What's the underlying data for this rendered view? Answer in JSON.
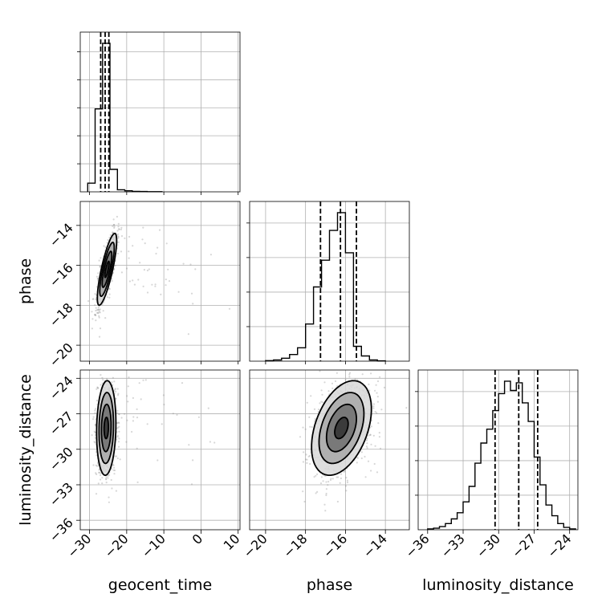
{
  "chart_data": {
    "type": "corner",
    "parameters": [
      "geocent_time",
      "phase",
      "luminosity_distance"
    ],
    "grid": true,
    "colors": {
      "line": "#000000",
      "points": "#8c8c8c",
      "grid": "#b0b0b0"
    },
    "ticks": {
      "geocent_time": {
        "values": [
          -30,
          -20,
          -10,
          0,
          10
        ],
        "labels": [
          "−30",
          "−20",
          "−10",
          "0",
          "10"
        ]
      },
      "phase": {
        "values": [
          -20,
          -18,
          -16,
          -14
        ],
        "labels": [
          "−20",
          "−18",
          "−16",
          "−14"
        ]
      },
      "luminosity_distance": {
        "values": [
          -36,
          -33,
          -30,
          -27,
          -24
        ],
        "labels": [
          "−36",
          "−33",
          "−30",
          "−27",
          "−24"
        ]
      }
    },
    "ranges": {
      "geocent_time": [
        -32.5,
        10.5
      ],
      "phase": [
        -20.8,
        -12.8
      ],
      "luminosity_distance": [
        -36.8,
        -23.3
      ]
    },
    "histograms": [
      {
        "parameter": "geocent_time",
        "bin_edges": [
          -30.5,
          -28.5,
          -26.5,
          -24.5,
          -22.5,
          -20.5,
          -18.5,
          -16.5,
          -14.5,
          -12.5,
          -10.5
        ],
        "counts": [
          0.05,
          0.48,
          0.86,
          0.13,
          0.012,
          0.006,
          0.003,
          0.002,
          0.001,
          0.001
        ],
        "quantiles": [
          -27.0,
          -25.8,
          -24.8
        ]
      },
      {
        "parameter": "phase",
        "bin_edges": [
          -20.0,
          -19.6,
          -19.2,
          -18.8,
          -18.4,
          -18.0,
          -17.6,
          -17.2,
          -16.8,
          -16.4,
          -16.0,
          -15.6,
          -15.2,
          -14.8,
          -14.4,
          -14.0
        ],
        "counts": [
          0.004,
          0.008,
          0.02,
          0.045,
          0.09,
          0.25,
          0.5,
          0.68,
          0.88,
          1.0,
          0.73,
          0.1,
          0.035,
          0.008,
          0.002
        ],
        "quantiles": [
          -17.25,
          -16.25,
          -15.45
        ]
      },
      {
        "parameter": "luminosity_distance",
        "bin_edges": [
          -36.0,
          -35.5,
          -35.0,
          -34.5,
          -34.0,
          -33.5,
          -33.0,
          -32.5,
          -32.0,
          -31.5,
          -31.0,
          -30.5,
          -30.0,
          -29.5,
          -29.0,
          -28.5,
          -28.0,
          -27.5,
          -27.0,
          -26.5,
          -26.0,
          -25.5,
          -25.0,
          -24.5,
          -24.0,
          -23.5
        ],
        "counts": [
          0.005,
          0.01,
          0.02,
          0.04,
          0.07,
          0.11,
          0.18,
          0.28,
          0.43,
          0.56,
          0.65,
          0.77,
          0.88,
          0.96,
          0.9,
          0.95,
          0.82,
          0.7,
          0.47,
          0.29,
          0.16,
          0.09,
          0.04,
          0.015,
          0.005
        ],
        "quantiles": [
          -30.3,
          -28.3,
          -26.7
        ]
      }
    ],
    "joint_distributions": [
      {
        "x": "geocent_time",
        "y": "phase",
        "peak": [
          -25.3,
          -16.2
        ],
        "sd": [
          1.3,
          0.9
        ],
        "corr": 0.8,
        "outlier_fraction": 0.05
      },
      {
        "x": "geocent_time",
        "y": "luminosity_distance",
        "peak": [
          -25.5,
          -28.2
        ],
        "sd": [
          1.3,
          2.0
        ],
        "corr": 0.1,
        "outlier_fraction": 0.06
      },
      {
        "x": "phase",
        "y": "luminosity_distance",
        "peak": [
          -16.2,
          -28.2
        ],
        "sd": [
          0.75,
          2.0
        ],
        "corr": 0.4,
        "outlier_fraction": 0.03
      }
    ]
  }
}
